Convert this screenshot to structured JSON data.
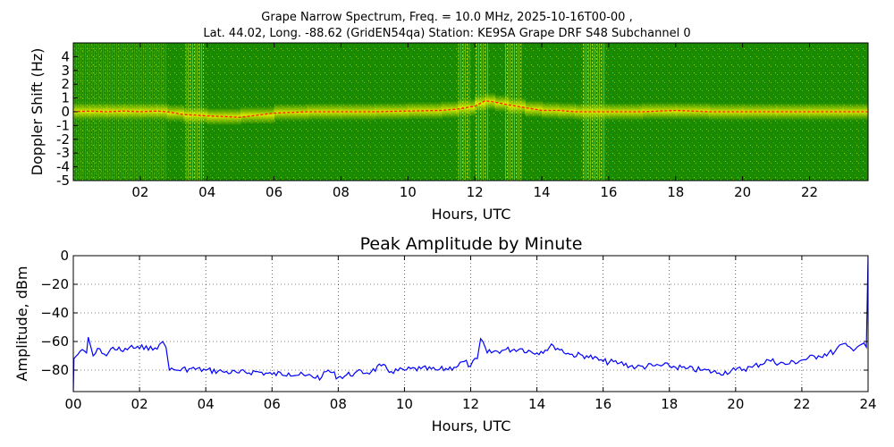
{
  "header": {
    "line1": "Grape Narrow Spectrum, Freq. = 10.0 MHz, 2025-10-16T00-00 ,",
    "line2": "Lat.  44.02, Long. -88.62 (GridEN54qa) Station: KE9SA Grape DRF S48 Subchannel 0"
  },
  "chart_data": [
    {
      "type": "heatmap",
      "title": "",
      "xlabel": "Hours, UTC",
      "ylabel": "Doppler Shift (Hz)",
      "xlim": [
        0,
        23.75
      ],
      "ylim": [
        -5,
        5
      ],
      "x_ticks": [
        "02",
        "04",
        "06",
        "08",
        "10",
        "12",
        "14",
        "16",
        "18",
        "20",
        "22"
      ],
      "x_tick_values": [
        2,
        4,
        6,
        8,
        10,
        12,
        14,
        16,
        18,
        20,
        22
      ],
      "y_ticks": [
        "4",
        "3",
        "2",
        "1",
        "0",
        "-1",
        "-2",
        "-3",
        "-4",
        "-5"
      ],
      "y_tick_values": [
        4,
        3,
        2,
        1,
        0,
        -1,
        -2,
        -3,
        -4,
        -5
      ],
      "colors": {
        "background": "#1a8a00",
        "signal": "#e6e600",
        "peak": "#ff2000"
      },
      "peak_trace": {
        "x": [
          0,
          0.5,
          1,
          1.5,
          2,
          2.5,
          2.8,
          3.3,
          4,
          5,
          6,
          7,
          8,
          9,
          10,
          11,
          11.5,
          12,
          12.3,
          12.6,
          13,
          13.5,
          14,
          14.5,
          15,
          16,
          17,
          18,
          19,
          20,
          21,
          22,
          23,
          23.75
        ],
        "y": [
          0,
          0.05,
          0,
          0.05,
          0,
          0.05,
          0,
          -0.2,
          -0.3,
          -0.4,
          -0.1,
          0,
          0,
          0,
          0.05,
          0.1,
          0.2,
          0.4,
          0.8,
          0.7,
          0.5,
          0.3,
          0.1,
          0.1,
          0,
          0,
          0,
          0.1,
          0,
          0,
          0,
          0,
          0,
          0
        ]
      }
    },
    {
      "type": "line",
      "title": "Peak Amplitude by Minute",
      "xlabel": "Hours, UTC",
      "ylabel": "Amplitude, dBm",
      "xlim": [
        0,
        24
      ],
      "ylim": [
        -95,
        0
      ],
      "grid": true,
      "x_ticks": [
        "00",
        "02",
        "04",
        "06",
        "08",
        "10",
        "12",
        "14",
        "16",
        "18",
        "20",
        "22",
        "24"
      ],
      "x_tick_values": [
        0,
        2,
        4,
        6,
        8,
        10,
        12,
        14,
        16,
        18,
        20,
        22,
        24
      ],
      "y_ticks": [
        "0",
        "−20",
        "−40",
        "−60",
        "−80"
      ],
      "y_tick_values": [
        0,
        -20,
        -40,
        -60,
        -80
      ],
      "series": [
        {
          "color": "#0000ff",
          "x": [
            0,
            0.02,
            0.2,
            0.4,
            0.45,
            0.6,
            0.8,
            1,
            1.2,
            1.5,
            1.7,
            2,
            2.2,
            2.4,
            2.6,
            2.7,
            2.8,
            2.9,
            3.1,
            3.5,
            4,
            4.5,
            5,
            5.5,
            6,
            6.5,
            7,
            7.5,
            7.7,
            8,
            8.5,
            9,
            9.3,
            9.6,
            10,
            10.5,
            11,
            11.5,
            11.8,
            12,
            12.2,
            12.3,
            12.5,
            13,
            13.5,
            14,
            14.5,
            15,
            15.5,
            16,
            16.5,
            17,
            17.5,
            18,
            18.5,
            19,
            19.5,
            20,
            20.5,
            21,
            21.5,
            22,
            22.5,
            23,
            23.2,
            23.5,
            23.8,
            23.95,
            24
          ],
          "y": [
            -95,
            -72,
            -67,
            -68,
            -57,
            -70,
            -65,
            -70,
            -64,
            -67,
            -64,
            -65,
            -63,
            -66,
            -62,
            -60,
            -64,
            -80,
            -80,
            -79,
            -80,
            -81,
            -82,
            -81,
            -83,
            -82,
            -84,
            -85,
            -80,
            -85,
            -82,
            -81,
            -77,
            -81,
            -80,
            -79,
            -80,
            -78,
            -74,
            -77,
            -72,
            -58,
            -68,
            -66,
            -65,
            -68,
            -63,
            -69,
            -70,
            -74,
            -75,
            -78,
            -77,
            -77,
            -79,
            -80,
            -82,
            -80,
            -78,
            -73,
            -76,
            -73,
            -70,
            -67,
            -62,
            -65,
            -62,
            -64,
            0
          ]
        }
      ]
    }
  ]
}
